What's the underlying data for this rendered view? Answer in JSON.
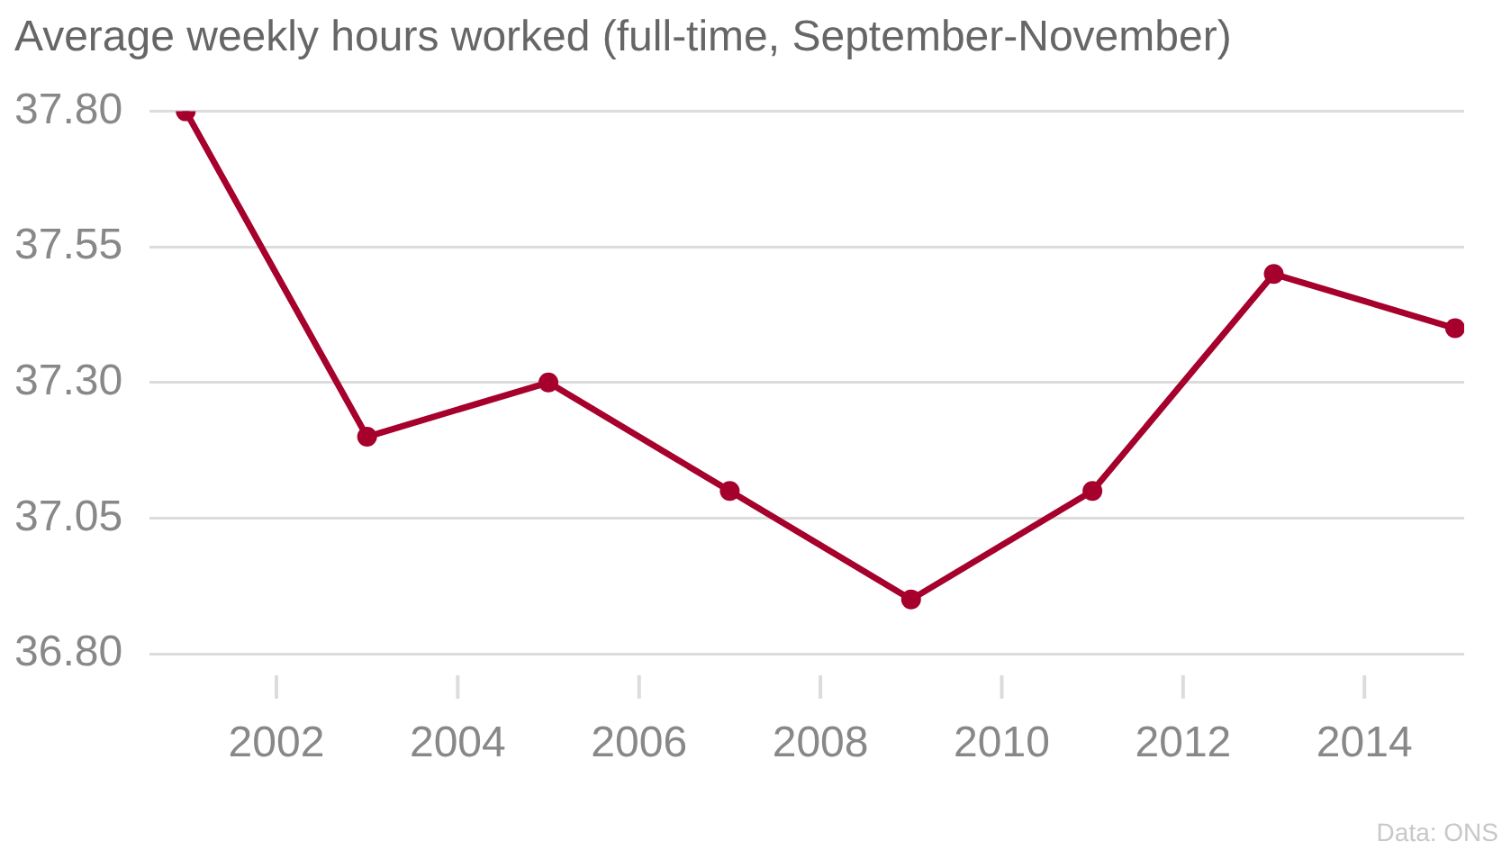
{
  "chart_data": {
    "type": "line",
    "title": "Average weekly hours worked (full-time, September-November)",
    "x": [
      2001,
      2003,
      2005,
      2007,
      2009,
      2011,
      2013,
      2015
    ],
    "series": [
      {
        "color": "#a6002c",
        "values": [
          37.8,
          37.2,
          37.3,
          37.1,
          36.9,
          37.1,
          37.5,
          37.4
        ]
      }
    ],
    "xlim": [
      2000.6,
      2015.1
    ],
    "xticks": [
      2002,
      2004,
      2006,
      2008,
      2010,
      2012,
      2014
    ],
    "ylim": [
      36.8,
      37.8
    ],
    "yticks": [
      {
        "value": 36.8,
        "label": "36.80"
      },
      {
        "value": 37.05,
        "label": "37.05"
      },
      {
        "value": 37.3,
        "label": "37.30"
      },
      {
        "value": 37.55,
        "label": "37.55"
      },
      {
        "value": 37.8,
        "label": "37.80"
      }
    ],
    "grid": "y",
    "legend": false,
    "marker": "circle",
    "line_style": "solid",
    "annotations": [
      "Data: ONS"
    ]
  }
}
